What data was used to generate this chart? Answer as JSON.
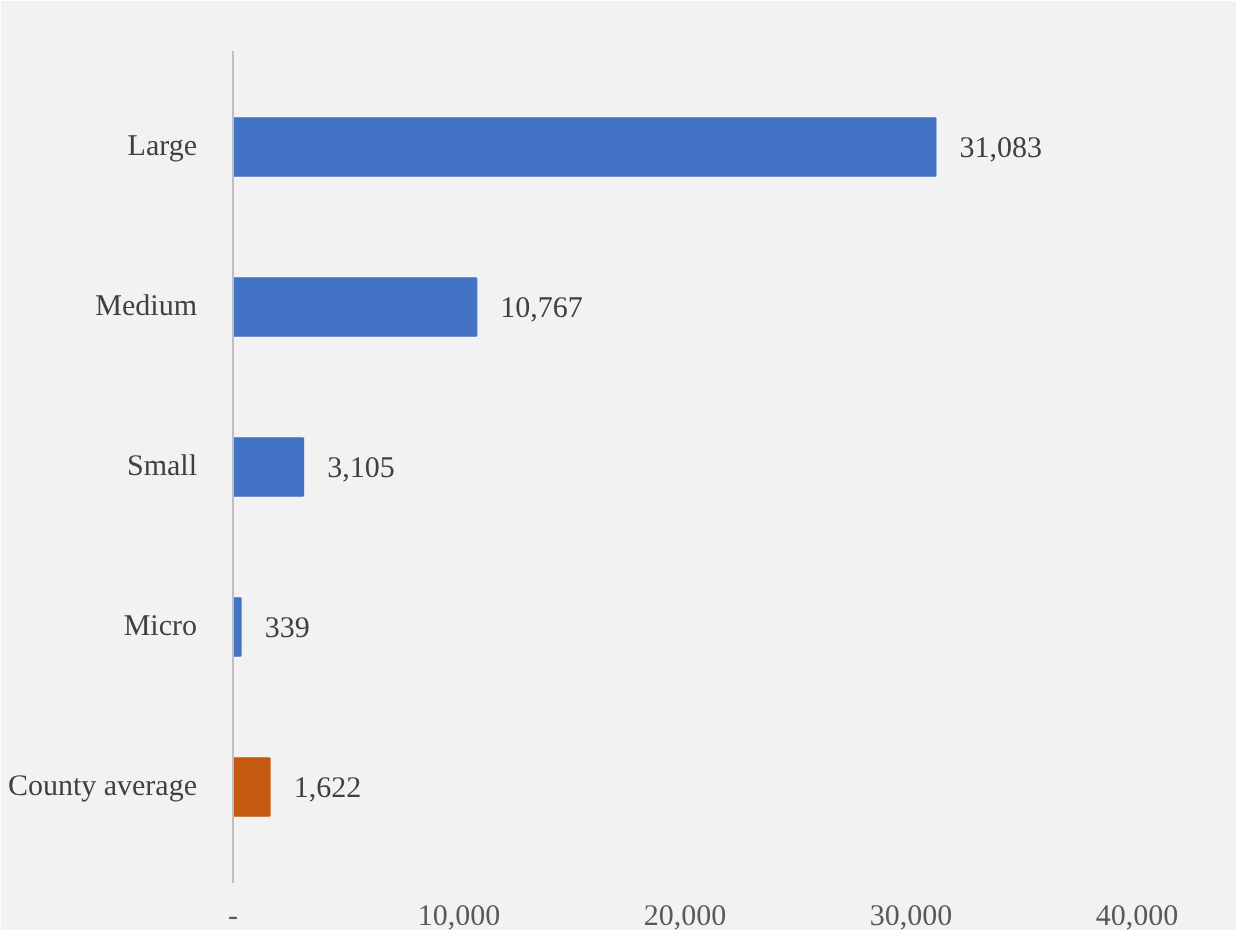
{
  "chart_data": {
    "type": "bar",
    "orientation": "horizontal",
    "categories": [
      "Large",
      "Medium",
      "Small",
      "Micro",
      "County average"
    ],
    "values": [
      31083,
      10767,
      3105,
      339,
      1622
    ],
    "colors": [
      "#4472c4",
      "#4472c4",
      "#4472c4",
      "#4472c4",
      "#c55a11"
    ],
    "value_labels": [
      "31,083",
      "10,767",
      "3,105",
      "339",
      "1,622"
    ],
    "xlim": [
      0,
      40000
    ],
    "xticks": [
      {
        "value": 0,
        "label": "-"
      },
      {
        "value": 10000,
        "label": "10,000"
      },
      {
        "value": 20000,
        "label": "20,000"
      },
      {
        "value": 30000,
        "label": "30,000"
      },
      {
        "value": 40000,
        "label": "40,000"
      }
    ],
    "grid": false
  }
}
